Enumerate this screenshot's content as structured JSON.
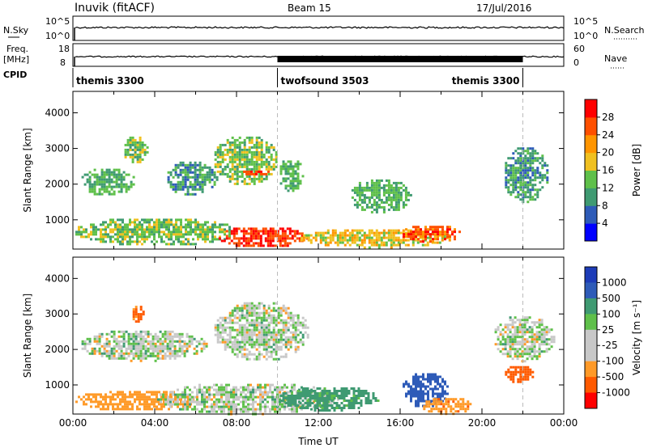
{
  "header": {
    "station": "Inuvik (fitACF)",
    "beam": "Beam 15",
    "date": "17/Jul/2016"
  },
  "strip_labels": {
    "nsky": "N.Sky",
    "freq_line1": "Freq.",
    "freq_line2": "[MHz]",
    "cpid": "CPID",
    "nsearch": "N.Search",
    "nave": "Nave"
  },
  "strip_ticks": {
    "nsky_left": [
      "10^5",
      "10^0"
    ],
    "nsky_right": [
      "10^5",
      "10^0"
    ],
    "freq_left": [
      "18",
      "8"
    ],
    "nave_right": [
      "60",
      "0"
    ]
  },
  "cpid_segments": [
    {
      "label": "themis 3300",
      "start_hour": 0,
      "end_hour": 10
    },
    {
      "label": "twofsound 3503",
      "start_hour": 10,
      "end_hour": 22
    },
    {
      "label": "themis 3300",
      "start_hour": 22,
      "end_hour": 24
    }
  ],
  "colors": {
    "power": [
      "#0000ff",
      "#2e5bb8",
      "#3f9a72",
      "#5fc04a",
      "#f0c020",
      "#ff9500",
      "#ff5000",
      "#ff0000"
    ],
    "velocity": [
      "#ff0000",
      "#ff5a00",
      "#ff9a28",
      "#c8c8c8",
      "#c8c8c8",
      "#5fc04a",
      "#3f9a72",
      "#2e5bb8",
      "#1d3cb8"
    ],
    "ground_scatter": "#c8c8c8"
  },
  "chart_data": [
    {
      "type": "heatmap",
      "name": "power",
      "ylabel": "Slant Range [km]",
      "xlabel": "",
      "xlim_hours": [
        0,
        24
      ],
      "ylim": [
        180,
        4600
      ],
      "yticks": [
        "1000",
        "2000",
        "3000",
        "4000"
      ],
      "colorbar_label": "Power [dB]",
      "colorbar_ticks": [
        "4",
        "8",
        "12",
        "16",
        "20",
        "24",
        "28"
      ],
      "colorbar_range": [
        0,
        32
      ],
      "scatter_regions": [
        {
          "h0": 0.3,
          "h1": 3.0,
          "r0": 1700,
          "r1": 2500,
          "level": 12
        },
        {
          "h0": 2.4,
          "h1": 3.6,
          "r0": 2600,
          "r1": 3400,
          "level": 14
        },
        {
          "h0": 4.5,
          "h1": 7.0,
          "r0": 1700,
          "r1": 2700,
          "level": 10
        },
        {
          "h0": 6.8,
          "h1": 10.0,
          "r0": 2000,
          "r1": 3400,
          "level": 14
        },
        {
          "h0": 8.2,
          "h1": 9.6,
          "r0": 2250,
          "r1": 2450,
          "level": 28
        },
        {
          "h0": 10.0,
          "h1": 11.2,
          "r0": 1800,
          "r1": 2800,
          "level": 12
        },
        {
          "h0": 13.5,
          "h1": 16.5,
          "r0": 1200,
          "r1": 2200,
          "level": 12
        },
        {
          "h0": 0.0,
          "h1": 8.0,
          "r0": 300,
          "r1": 1100,
          "level": 14
        },
        {
          "h0": 7.0,
          "h1": 11.5,
          "r0": 250,
          "r1": 850,
          "level": 28
        },
        {
          "h0": 11.0,
          "h1": 18.5,
          "r0": 250,
          "r1": 800,
          "level": 18
        },
        {
          "h0": 16.0,
          "h1": 19.0,
          "r0": 400,
          "r1": 900,
          "level": 26
        },
        {
          "h0": 21.0,
          "h1": 23.2,
          "r0": 1500,
          "r1": 3100,
          "level": 10
        }
      ]
    },
    {
      "type": "heatmap",
      "name": "velocity",
      "ylabel": "Slant Range [km]",
      "xlabel": "Time UT",
      "xlim_hours": [
        0,
        24
      ],
      "ylim": [
        180,
        4600
      ],
      "xticks": [
        "00:00",
        "04:00",
        "08:00",
        "12:00",
        "16:00",
        "20:00",
        "00:00"
      ],
      "yticks": [
        "1000",
        "2000",
        "3000",
        "4000"
      ],
      "colorbar_label": "Velocity [m s⁻¹]",
      "colorbar_ticks": [
        "1000",
        "500",
        "100",
        "25",
        "-25",
        "-100",
        "-500",
        "-1000"
      ],
      "scatter_regions": [
        {
          "h0": 0.3,
          "h1": 6.5,
          "r0": 1700,
          "r1": 2600,
          "level": 0
        },
        {
          "h0": 6.8,
          "h1": 11.5,
          "r0": 1700,
          "r1": 3400,
          "level": 0
        },
        {
          "h0": 2.8,
          "h1": 3.4,
          "r0": 2800,
          "r1": 3300,
          "level": -600
        },
        {
          "h0": 0.0,
          "h1": 6.0,
          "r0": 300,
          "r1": 900,
          "level": -300
        },
        {
          "h0": 4.0,
          "h1": 13.0,
          "r0": 200,
          "r1": 1100,
          "level": 0
        },
        {
          "h0": 10.0,
          "h1": 15.0,
          "r0": 300,
          "r1": 1000,
          "level": 200
        },
        {
          "h0": 16.0,
          "h1": 18.3,
          "r0": 400,
          "r1": 1400,
          "level": 800
        },
        {
          "h0": 17.0,
          "h1": 19.5,
          "r0": 200,
          "r1": 700,
          "level": -400
        },
        {
          "h0": 21.0,
          "h1": 22.5,
          "r0": 1100,
          "r1": 1600,
          "level": -700
        },
        {
          "h0": 20.5,
          "h1": 23.5,
          "r0": 1700,
          "r1": 3000,
          "level": 0
        }
      ]
    }
  ]
}
